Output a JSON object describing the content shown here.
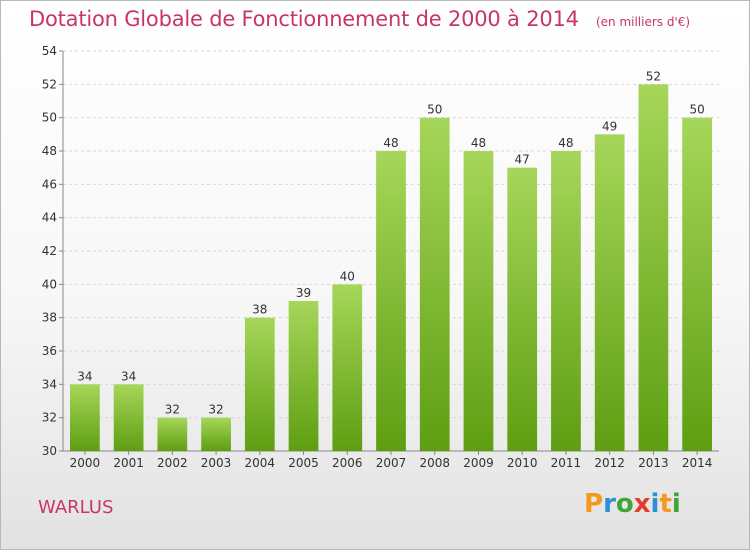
{
  "title": "Dotation Globale de Fonctionnement de 2000 à 2014",
  "subtitle": "(en milliers d'€)",
  "commune": "WARLUS",
  "logo": {
    "letters": [
      "P",
      "r",
      "o",
      "x",
      "i",
      "t",
      "i"
    ],
    "colors": [
      "#f39a1e",
      "#2e8fd6",
      "#3fa535",
      "#e53b2f",
      "#2e8fd6",
      "#f39a1e",
      "#3fa535"
    ]
  },
  "colors": {
    "bar_top": "#a6d65a",
    "bar_bottom": "#5e9e12",
    "accent": "#c8356a"
  },
  "chart_data": {
    "type": "bar",
    "categories": [
      "2000",
      "2001",
      "2002",
      "2003",
      "2004",
      "2005",
      "2006",
      "2007",
      "2008",
      "2009",
      "2010",
      "2011",
      "2012",
      "2013",
      "2014"
    ],
    "values": [
      34,
      34,
      32,
      32,
      38,
      39,
      40,
      48,
      50,
      48,
      47,
      48,
      49,
      52,
      50
    ],
    "data_labels": [
      "34",
      "34",
      "32",
      "32",
      "38",
      "39",
      "40",
      "48",
      "50",
      "48",
      "47",
      "48",
      "49",
      "52",
      "50"
    ],
    "ylim": [
      30,
      54
    ],
    "yticks": [
      30,
      32,
      34,
      36,
      38,
      40,
      42,
      44,
      46,
      48,
      50,
      52,
      54
    ],
    "grid": true,
    "legend": "none"
  }
}
